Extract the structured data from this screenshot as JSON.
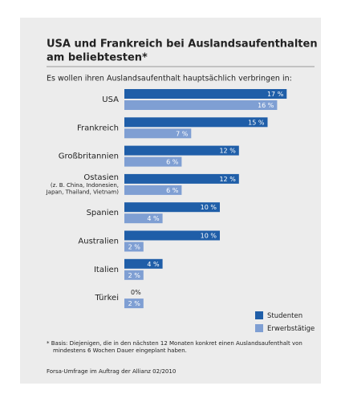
{
  "chart_data": {
    "type": "bar",
    "title": [
      "USA und Frankreich bei Auslandsaufenthalten",
      "am beliebtesten*"
    ],
    "subtitle": "Es wollen ihren Auslandsaufenthalt hauptsächlich verbringen in:",
    "categories": [
      "USA",
      "Frankreich",
      "Großbritannien",
      "Ostasien",
      "Spanien",
      "Australien",
      "Italien",
      "Türkei"
    ],
    "category_notes": [
      null,
      null,
      null,
      [
        "(z. B. China, Indonesien,",
        "Japan, Thailand, Vietnam)"
      ],
      null,
      null,
      null,
      null
    ],
    "series": [
      {
        "name": "Studenten",
        "color": "#1f5ea8",
        "values": [
          17,
          15,
          12,
          12,
          10,
          10,
          4,
          0
        ],
        "value_labels": [
          "17 %",
          "15 %",
          "12 %",
          "12 %",
          "10 %",
          "10 %",
          "4 %",
          "0%"
        ]
      },
      {
        "name": "Erwerbstätige",
        "color": "#7f9fd3",
        "values": [
          16,
          7,
          6,
          6,
          4,
          2,
          2,
          2
        ],
        "value_labels": [
          "16 %",
          "7 %",
          "6 %",
          "6 %",
          "4 %",
          "2 %",
          "2 %",
          "2 %"
        ]
      }
    ],
    "footnote": [
      "* Basis: Diejenigen, die in den nächsten 12 Monaten konkret einen Auslandsaufenthalt von",
      "mindestens 6 Wochen Dauer eingeplant haben."
    ],
    "source": "Forsa-Umfrage im Auftrag der Allianz 02/2010"
  }
}
